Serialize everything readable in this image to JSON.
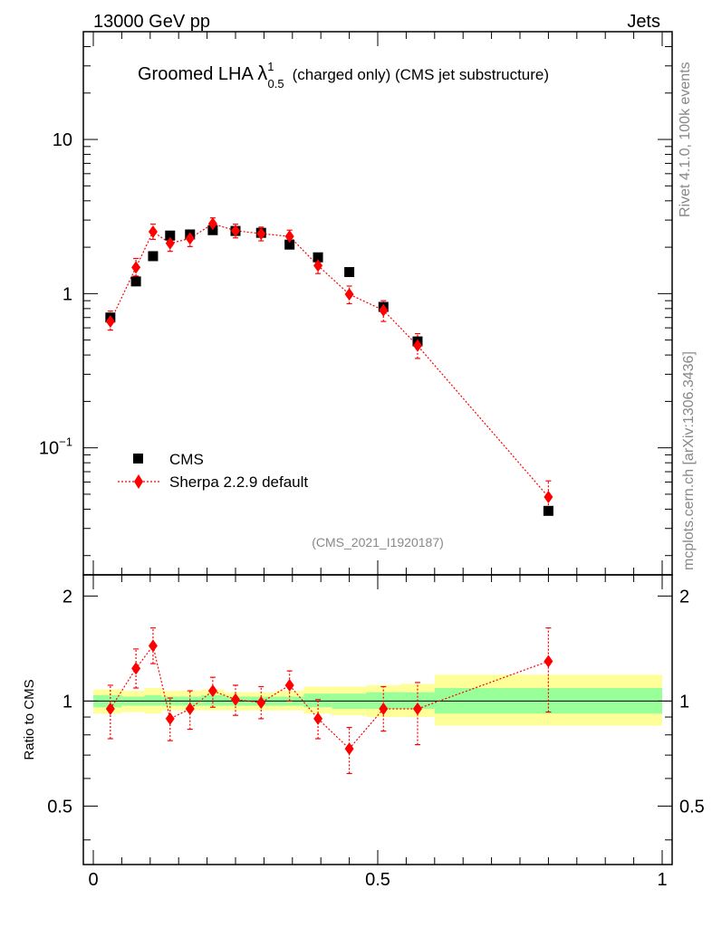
{
  "header": {
    "left": "13000 GeV pp",
    "right": "Jets"
  },
  "title": {
    "prefix": "Groomed LHA ",
    "lambda": "λ",
    "sup": "1",
    "sub": "0.5",
    "suffix": "(charged only) (CMS jet substructure)"
  },
  "side": {
    "rivet": "Rivet 4.1.0,  100k events",
    "mcplots": "mcplots.cern.ch [arXiv:1306.3436]"
  },
  "analysis_id": "(CMS_2021_I1920187)",
  "legend": {
    "data_label": "CMS",
    "mc_label": "Sherpa 2.2.9 default"
  },
  "ratio_ylabel": "Ratio to CMS",
  "colors": {
    "mc": "#ff0000",
    "data": "#000000",
    "band_outer": "#ffff99",
    "band_inner": "#99ff99"
  },
  "chart_data": [
    {
      "type": "scatter",
      "title": "Groomed LHA λ^1_0.5 (charged only) (CMS jet substructure)",
      "yscale": "log",
      "xlim": [
        0,
        1
      ],
      "ylim": [
        0.015,
        50
      ],
      "y_ticks": [
        {
          "label": "10",
          "sup": "",
          "value": 10
        },
        {
          "label": "1",
          "sup": "",
          "value": 1
        },
        {
          "label": "10",
          "sup": "−1",
          "value": 0.1
        }
      ],
      "series": [
        {
          "name": "CMS",
          "marker": "square",
          "x": [
            0.03,
            0.075,
            0.105,
            0.135,
            0.17,
            0.21,
            0.25,
            0.295,
            0.345,
            0.395,
            0.45,
            0.51,
            0.57,
            0.8
          ],
          "values": [
            0.7,
            1.2,
            1.75,
            2.38,
            2.42,
            2.58,
            2.55,
            2.48,
            2.08,
            1.72,
            1.38,
            0.82,
            0.49,
            0.039
          ]
        },
        {
          "name": "Sherpa 2.2.9 default",
          "marker": "diamond",
          "x": [
            0.03,
            0.075,
            0.105,
            0.135,
            0.17,
            0.21,
            0.25,
            0.295,
            0.345,
            0.395,
            0.45,
            0.51,
            0.57,
            0.8
          ],
          "values": [
            0.66,
            1.48,
            2.52,
            2.12,
            2.28,
            2.84,
            2.56,
            2.45,
            2.35,
            1.52,
            0.99,
            0.78,
            0.46,
            0.048
          ],
          "err_low": [
            0.58,
            1.3,
            2.25,
            1.88,
            2.02,
            2.58,
            2.3,
            2.2,
            2.12,
            1.35,
            0.86,
            0.66,
            0.38,
            0.038
          ],
          "err_high": [
            0.77,
            1.69,
            2.82,
            2.36,
            2.52,
            3.1,
            2.82,
            2.7,
            2.58,
            1.7,
            1.12,
            0.9,
            0.55,
            0.061
          ]
        }
      ]
    },
    {
      "type": "scatter",
      "title": "Ratio to CMS",
      "ylabel": "Ratio to CMS",
      "xlim": [
        0,
        1
      ],
      "ylim": [
        0.34,
        2.3
      ],
      "x_ticks": [
        {
          "label": "0",
          "value": 0
        },
        {
          "label": "0.5",
          "value": 0.5
        },
        {
          "label": "1",
          "value": 1
        }
      ],
      "y_ticks": [
        {
          "label": "2",
          "value": 2
        },
        {
          "label": "1",
          "value": 1
        },
        {
          "label": "0.5",
          "value": 0.5
        }
      ],
      "bands": [
        {
          "x_low": 0.0,
          "x_high": 0.05,
          "inner": [
            0.96,
            1.04
          ],
          "outer": [
            0.92,
            1.08
          ]
        },
        {
          "x_low": 0.05,
          "x_high": 0.09,
          "inner": [
            0.97,
            1.03
          ],
          "outer": [
            0.93,
            1.07
          ]
        },
        {
          "x_low": 0.09,
          "x_high": 0.12,
          "inner": [
            0.97,
            1.04
          ],
          "outer": [
            0.92,
            1.09
          ]
        },
        {
          "x_low": 0.12,
          "x_high": 0.15,
          "inner": [
            0.97,
            1.03
          ],
          "outer": [
            0.94,
            1.07
          ]
        },
        {
          "x_low": 0.15,
          "x_high": 0.19,
          "inner": [
            0.97,
            1.03
          ],
          "outer": [
            0.94,
            1.07
          ]
        },
        {
          "x_low": 0.19,
          "x_high": 0.23,
          "inner": [
            0.97,
            1.04
          ],
          "outer": [
            0.94,
            1.08
          ]
        },
        {
          "x_low": 0.23,
          "x_high": 0.27,
          "inner": [
            0.97,
            1.03
          ],
          "outer": [
            0.94,
            1.06
          ]
        },
        {
          "x_low": 0.27,
          "x_high": 0.32,
          "inner": [
            0.97,
            1.03
          ],
          "outer": [
            0.94,
            1.06
          ]
        },
        {
          "x_low": 0.32,
          "x_high": 0.37,
          "inner": [
            0.97,
            1.03
          ],
          "outer": [
            0.94,
            1.07
          ]
        },
        {
          "x_low": 0.37,
          "x_high": 0.42,
          "inner": [
            0.96,
            1.05
          ],
          "outer": [
            0.92,
            1.1
          ]
        },
        {
          "x_low": 0.42,
          "x_high": 0.48,
          "inner": [
            0.95,
            1.05
          ],
          "outer": [
            0.91,
            1.1
          ]
        },
        {
          "x_low": 0.48,
          "x_high": 0.54,
          "inner": [
            0.95,
            1.06
          ],
          "outer": [
            0.9,
            1.11
          ]
        },
        {
          "x_low": 0.54,
          "x_high": 0.6,
          "inner": [
            0.95,
            1.06
          ],
          "outer": [
            0.9,
            1.12
          ]
        },
        {
          "x_low": 0.6,
          "x_high": 1.0,
          "inner": [
            0.92,
            1.09
          ],
          "outer": [
            0.85,
            1.19
          ]
        }
      ],
      "series": [
        {
          "name": "Sherpa 2.2.9 default / CMS",
          "marker": "diamond",
          "x": [
            0.03,
            0.075,
            0.105,
            0.135,
            0.17,
            0.21,
            0.25,
            0.295,
            0.345,
            0.395,
            0.45,
            0.51,
            0.57,
            0.8
          ],
          "values": [
            0.95,
            1.24,
            1.44,
            0.89,
            0.95,
            1.07,
            1.01,
            0.99,
            1.11,
            0.89,
            0.73,
            0.95,
            0.95,
            1.3
          ],
          "err_low": [
            0.78,
            1.09,
            1.28,
            0.77,
            0.83,
            0.96,
            0.91,
            0.89,
            1.0,
            0.78,
            0.62,
            0.82,
            0.75,
            0.93
          ],
          "err_high": [
            1.11,
            1.41,
            1.62,
            1.02,
            1.07,
            1.17,
            1.11,
            1.1,
            1.22,
            1.01,
            0.84,
            1.1,
            1.13,
            1.62
          ]
        }
      ]
    }
  ]
}
